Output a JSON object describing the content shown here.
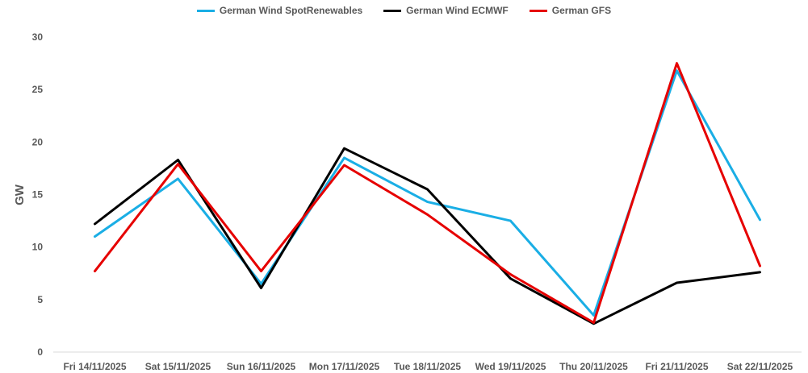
{
  "chart_data": {
    "type": "line",
    "title": "",
    "xlabel": "",
    "ylabel": "GW",
    "ylim": [
      0,
      30
    ],
    "yticks": [
      0,
      5,
      10,
      15,
      20,
      25,
      30
    ],
    "grid": false,
    "legend_position": "top",
    "categories": [
      "Fri 14/11/2025",
      "Sat 15/11/2025",
      "Sun 16/11/2025",
      "Mon 17/11/2025",
      "Tue 18/11/2025",
      "Wed 19/11/2025",
      "Thu 20/11/2025",
      "Fri 21/11/2025",
      "Sat 22/11/2025"
    ],
    "series": [
      {
        "name": "German Wind SpotRenewables",
        "color": "#1aaee5",
        "values": [
          11.0,
          16.5,
          6.5,
          18.5,
          14.3,
          12.5,
          3.5,
          26.8,
          12.6
        ]
      },
      {
        "name": "German Wind ECMWF",
        "color": "#000000",
        "values": [
          12.2,
          18.3,
          6.1,
          19.4,
          15.5,
          7.0,
          2.7,
          6.6,
          7.6
        ]
      },
      {
        "name": "German GFS",
        "color": "#e60000",
        "values": [
          7.7,
          17.9,
          7.7,
          17.8,
          13.1,
          7.4,
          2.8,
          27.5,
          8.2
        ]
      }
    ]
  }
}
